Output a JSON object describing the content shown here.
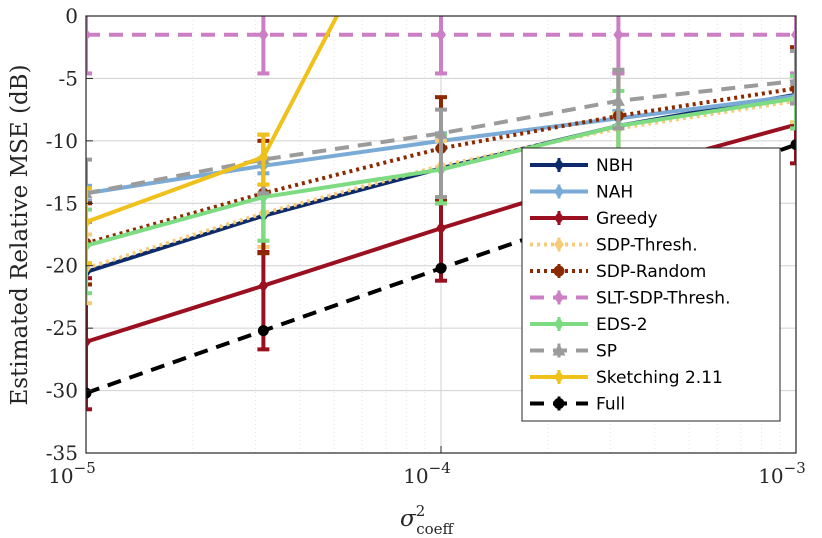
{
  "chart_data": {
    "type": "line",
    "xscale": "log",
    "xlim": [
      1e-05,
      0.001
    ],
    "ylim": [
      -35,
      0
    ],
    "grid": true,
    "legend_position": "bottom-right",
    "ylabel": "Estimated Relative MSE (dB)",
    "xlabel_base": "σ",
    "xlabel_sup": "2",
    "xlabel_sub": "coeff",
    "x": [
      1e-05,
      3.16e-05,
      0.0001,
      0.000316,
      0.001
    ],
    "x_ticks": [
      {
        "value": 1e-05,
        "base": "10",
        "exp": "−5"
      },
      {
        "value": 0.0001,
        "base": "10",
        "exp": "−4"
      },
      {
        "value": 0.001,
        "base": "10",
        "exp": "−3"
      }
    ],
    "y_ticks": [
      0,
      -5,
      -10,
      -15,
      -20,
      -25,
      -30,
      -35
    ],
    "series": [
      {
        "name": "NBH",
        "color": "#0d2b6b",
        "dash": "solid",
        "marker": "diamond",
        "values": [
          -20.5,
          -16.0,
          -12.2,
          -8.8,
          -6.3
        ],
        "err": [
          [
            -20.5,
            -20.5
          ],
          [
            -16.0,
            -16.0
          ],
          [
            -12.2,
            -12.2
          ],
          [
            -8.8,
            -8.8
          ],
          [
            -6.3,
            -6.3
          ]
        ]
      },
      {
        "name": "NAH",
        "color": "#7aaad6",
        "dash": "solid",
        "marker": "diamond",
        "values": [
          -14.2,
          -12.0,
          -10.0,
          -8.2,
          -6.4
        ],
        "err": [
          [
            -14.8,
            -13.6
          ],
          [
            -12.6,
            -11.4
          ],
          [
            -10.6,
            -9.4
          ],
          [
            -8.8,
            -7.6
          ],
          [
            -7.0,
            -5.8
          ]
        ]
      },
      {
        "name": "Greedy",
        "color": "#9b1020",
        "dash": "solid",
        "marker": "diamond",
        "values": [
          -26.1,
          -21.6,
          -17.0,
          -12.6,
          -8.7
        ],
        "err": [
          [
            -31.5,
            -21.0
          ],
          [
            -26.7,
            -18.9
          ],
          [
            -21.2,
            -15.0
          ],
          [
            -16.0,
            -10.8
          ],
          [
            -11.8,
            -7.0
          ]
        ]
      },
      {
        "name": "SDP-Thresh.",
        "color": "#f5cc7a",
        "dash": "dotted",
        "marker": "diamond",
        "values": [
          -20.2,
          -15.8,
          -12.0,
          -9.0,
          -6.8
        ],
        "err": [
          [
            -23.0,
            -17.5
          ],
          [
            -18.5,
            -13.5
          ],
          [
            -14.5,
            -10.0
          ],
          [
            -11.0,
            -7.8
          ],
          [
            -8.5,
            -5.8
          ]
        ]
      },
      {
        "name": "SDP-Random",
        "color": "#8b2a00",
        "dash": "dotted",
        "marker": "circle",
        "values": [
          -18.2,
          -14.2,
          -10.6,
          -8.0,
          -5.8
        ],
        "err": [
          [
            -21.5,
            -15.0
          ],
          [
            -19.0,
            -10.0
          ],
          [
            -14.8,
            -6.5
          ],
          [
            -11.5,
            -4.5
          ],
          [
            -9.0,
            -2.5
          ]
        ]
      },
      {
        "name": "SLT-SDP-Thresh.",
        "color": "#cc7fc4",
        "dash": "dashed",
        "marker": "diamond",
        "values": [
          -1.5,
          -1.5,
          -1.5,
          -1.5,
          -1.5
        ],
        "err": [
          [
            -4.6,
            1.5
          ],
          [
            -4.6,
            1.5
          ],
          [
            -4.6,
            1.5
          ],
          [
            -4.6,
            1.5
          ],
          [
            -4.6,
            1.5
          ]
        ]
      },
      {
        "name": "EDS-2",
        "color": "#7ddb82",
        "dash": "solid",
        "marker": "diamond",
        "values": [
          -18.4,
          -14.5,
          -12.3,
          -8.8,
          -6.6
        ],
        "err": [
          [
            -22.2,
            -15.5
          ],
          [
            -18.0,
            -11.8
          ],
          [
            -15.0,
            -9.5
          ],
          [
            -11.5,
            -6.0
          ],
          [
            -9.0,
            -4.8
          ]
        ]
      },
      {
        "name": "SP",
        "color": "#9b9b9b",
        "dash": "dashed",
        "marker": "triangle",
        "values": [
          -14.2,
          -11.5,
          -9.4,
          -6.8,
          -5.2
        ],
        "err": [
          [
            -16.5,
            -11.5
          ],
          [
            -14.2,
            -9.5
          ],
          [
            -14.5,
            -7.5
          ],
          [
            -9.0,
            -4.3
          ],
          [
            -7.0,
            -2.8
          ]
        ]
      },
      {
        "name": "Sketching 2.11",
        "color": "#efc11a",
        "dash": "solid",
        "marker": "diamond",
        "values": [
          -16.5,
          -11.3,
          16.0
        ],
        "x": [
          1e-05,
          3.16e-05,
          0.0001
        ],
        "err": [
          [
            -19.8,
            -13.8
          ],
          [
            -13.5,
            -9.5
          ],
          null
        ]
      },
      {
        "name": "Full",
        "color": "#000000",
        "dash": "dashed",
        "marker": "circle",
        "values": [
          -30.2,
          -25.2,
          -20.2,
          -15.3,
          -10.3
        ],
        "err": [
          [
            -30.2,
            -30.2
          ],
          [
            -25.2,
            -25.2
          ],
          [
            -20.2,
            -20.2
          ],
          [
            -15.3,
            -15.3
          ],
          [
            -10.3,
            -10.3
          ]
        ]
      }
    ]
  }
}
